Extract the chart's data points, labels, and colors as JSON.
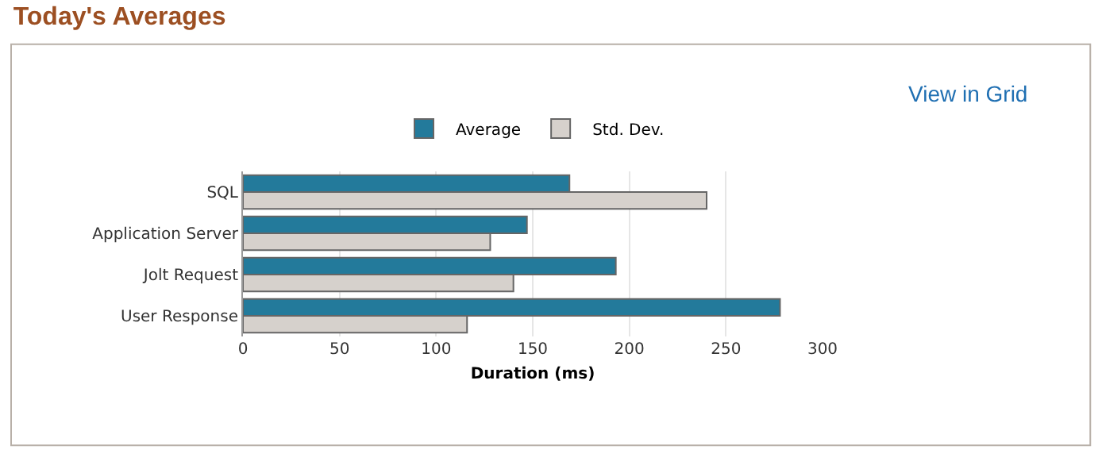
{
  "chart_data": {
    "type": "bar",
    "orientation": "horizontal",
    "title": "Today's Averages",
    "xlabel": "Duration (ms)",
    "annotations": [
      "View in Grid"
    ],
    "categories": [
      "SQL",
      "Application Server",
      "Jolt Request",
      "User Response"
    ],
    "series": [
      {
        "name": "Average",
        "color": "#237a9b",
        "values": [
          169,
          147,
          193,
          278
        ]
      },
      {
        "name": "Std. Dev.",
        "color": "#d6d1cc",
        "values": [
          240,
          128,
          140,
          116
        ]
      }
    ],
    "xlim": [
      0,
      300
    ],
    "xticks": [
      0,
      50,
      100,
      150,
      200,
      250,
      300
    ],
    "grid": "x",
    "legend": "top"
  }
}
